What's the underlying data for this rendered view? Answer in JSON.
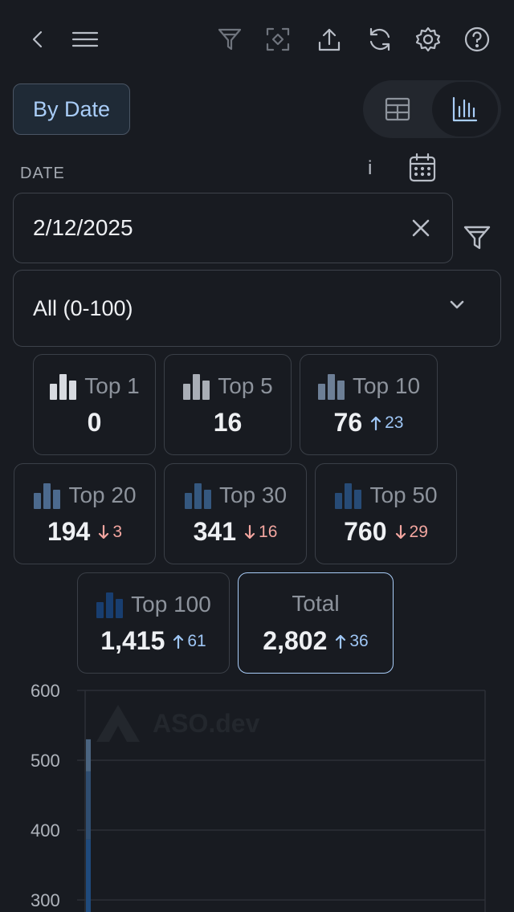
{
  "toolbar": {
    "icons": [
      "back-icon",
      "menu-icon",
      "filter-icon",
      "focus-icon",
      "share-icon",
      "refresh-icon",
      "settings-icon",
      "help-icon"
    ]
  },
  "view": {
    "mode_label": "By Date",
    "active_view": "chart"
  },
  "date_filter": {
    "label": "DATE",
    "info": "i",
    "value": "2/12/2025"
  },
  "range": {
    "selected": "All (0-100)"
  },
  "stats": [
    {
      "label": "Top 1",
      "value": "0",
      "delta": "",
      "dir": ""
    },
    {
      "label": "Top 5",
      "value": "16",
      "delta": "",
      "dir": ""
    },
    {
      "label": "Top 10",
      "value": "76",
      "delta": "23",
      "dir": "up"
    },
    {
      "label": "Top 20",
      "value": "194",
      "delta": "3",
      "dir": "down"
    },
    {
      "label": "Top 30",
      "value": "341",
      "delta": "16",
      "dir": "down"
    },
    {
      "label": "Top 50",
      "value": "760",
      "delta": "29",
      "dir": "down"
    },
    {
      "label": "Top 100",
      "value": "1,415",
      "delta": "61",
      "dir": "up"
    },
    {
      "label": "Total",
      "value": "2,802",
      "delta": "36",
      "dir": "up"
    }
  ],
  "colors": {
    "accent": "#a9cdf8",
    "up": "#9ec6f5",
    "down": "#f3a6a0",
    "bar_top": "#4a6480",
    "bar_bottom": "#1f4a7c"
  },
  "chart_data": {
    "type": "bar",
    "watermark": "ASO.dev",
    "yticks": [
      "600",
      "500",
      "400",
      "300"
    ],
    "ylim": [
      300,
      600
    ],
    "grid": true,
    "values": [
      530
    ]
  }
}
